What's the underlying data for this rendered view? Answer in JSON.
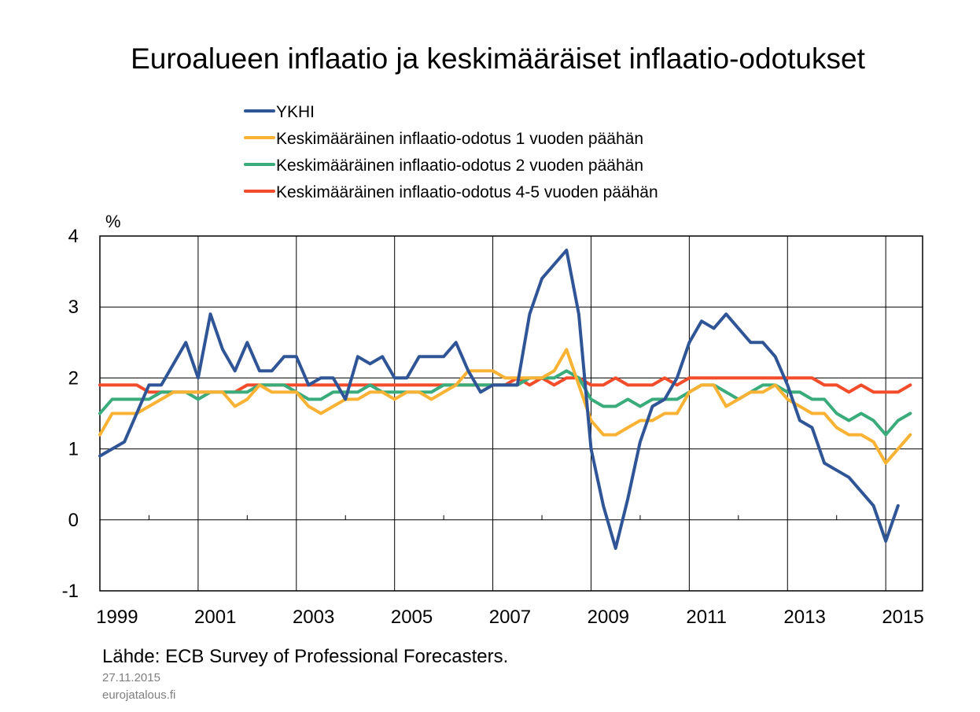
{
  "chart_data": {
    "type": "line",
    "title": "Euroalueen inflaatio ja keskimääräiset inflaatio-odotukset",
    "ylabel": "%",
    "xlabel": "",
    "ylim": [
      -1,
      4
    ],
    "xlim": [
      1999.0,
      2015.75
    ],
    "y_ticks": [
      "4",
      "3",
      "2",
      "1",
      "0",
      "-1"
    ],
    "x_ticks": [
      "1999",
      "2001",
      "2003",
      "2005",
      "2007",
      "2009",
      "2011",
      "2013",
      "2015"
    ],
    "grid": "vertical and horizontal lines",
    "legend_position": "top, above plot",
    "x_start": 1999.0,
    "x_step": 0.25,
    "series": [
      {
        "name": "YKHI",
        "color": "#2f5597",
        "values": [
          0.9,
          1.0,
          1.1,
          1.5,
          1.9,
          1.9,
          2.2,
          2.5,
          2.0,
          2.9,
          2.4,
          2.1,
          2.5,
          2.1,
          2.1,
          2.3,
          2.3,
          1.9,
          2.0,
          2.0,
          1.7,
          2.3,
          2.2,
          2.3,
          2.0,
          2.0,
          2.3,
          2.3,
          2.3,
          2.5,
          2.1,
          1.8,
          1.9,
          1.9,
          1.9,
          2.9,
          3.4,
          3.6,
          3.8,
          2.9,
          1.0,
          0.2,
          -0.4,
          0.3,
          1.1,
          1.6,
          1.7,
          2.0,
          2.5,
          2.8,
          2.7,
          2.9,
          2.7,
          2.5,
          2.5,
          2.3,
          1.9,
          1.4,
          1.3,
          0.8,
          0.7,
          0.6,
          0.4,
          0.2,
          -0.3,
          0.2
        ]
      },
      {
        "name": "Keskimääräinen inflaatio-odotus 1 vuoden päähän",
        "color": "#f9b233",
        "values": [
          1.2,
          1.5,
          1.5,
          1.5,
          1.6,
          1.7,
          1.8,
          1.8,
          1.8,
          1.8,
          1.8,
          1.6,
          1.7,
          1.9,
          1.8,
          1.8,
          1.8,
          1.6,
          1.5,
          1.6,
          1.7,
          1.7,
          1.8,
          1.8,
          1.7,
          1.8,
          1.8,
          1.7,
          1.8,
          1.9,
          2.1,
          2.1,
          2.1,
          2.0,
          2.0,
          2.0,
          2.0,
          2.1,
          2.4,
          1.9,
          1.4,
          1.2,
          1.2,
          1.3,
          1.4,
          1.4,
          1.5,
          1.5,
          1.8,
          1.9,
          1.9,
          1.6,
          1.7,
          1.8,
          1.8,
          1.9,
          1.7,
          1.6,
          1.5,
          1.5,
          1.3,
          1.2,
          1.2,
          1.1,
          0.8,
          1.0,
          1.2
        ]
      },
      {
        "name": "Keskimääräinen inflaatio-odotus 2 vuoden päähän",
        "color": "#3aab7b",
        "values": [
          1.5,
          1.7,
          1.7,
          1.7,
          1.7,
          1.8,
          1.8,
          1.8,
          1.7,
          1.8,
          1.8,
          1.8,
          1.8,
          1.9,
          1.9,
          1.9,
          1.8,
          1.7,
          1.7,
          1.8,
          1.8,
          1.8,
          1.9,
          1.8,
          1.8,
          1.8,
          1.8,
          1.8,
          1.9,
          1.9,
          1.9,
          1.9,
          1.9,
          1.9,
          1.9,
          2.0,
          2.0,
          2.0,
          2.1,
          2.0,
          1.7,
          1.6,
          1.6,
          1.7,
          1.6,
          1.7,
          1.7,
          1.7,
          1.8,
          1.9,
          1.9,
          1.8,
          1.7,
          1.8,
          1.9,
          1.9,
          1.8,
          1.8,
          1.7,
          1.7,
          1.5,
          1.4,
          1.5,
          1.4,
          1.2,
          1.4,
          1.5
        ]
      },
      {
        "name": "Keskimääräinen inflaatio-odotus 4-5 vuoden päähän",
        "color": "#f24c2a",
        "values": [
          1.9,
          1.9,
          1.9,
          1.9,
          1.8,
          1.8,
          1.8,
          1.8,
          1.8,
          1.8,
          1.8,
          1.8,
          1.9,
          1.9,
          1.9,
          1.9,
          1.9,
          1.9,
          1.9,
          1.9,
          1.9,
          1.9,
          1.9,
          1.9,
          1.9,
          1.9,
          1.9,
          1.9,
          1.9,
          1.9,
          1.9,
          1.9,
          1.9,
          1.9,
          2.0,
          1.9,
          2.0,
          1.9,
          2.0,
          2.0,
          1.9,
          1.9,
          2.0,
          1.9,
          1.9,
          1.9,
          2.0,
          1.9,
          2.0,
          2.0,
          2.0,
          2.0,
          2.0,
          2.0,
          2.0,
          2.0,
          2.0,
          2.0,
          2.0,
          1.9,
          1.9,
          1.8,
          1.9,
          1.8,
          1.8,
          1.8,
          1.9
        ]
      }
    ]
  },
  "source_text": "Lähde: ECB Survey of Professional Forecasters.",
  "date_text": "27.11.2015",
  "site_text": "eurojatalous.fi"
}
